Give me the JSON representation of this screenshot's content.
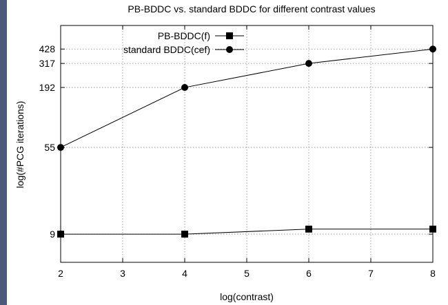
{
  "chart_data": {
    "type": "line",
    "title": "PB-BDDC vs. standard BDDC for different contrast values",
    "xlabel": "log(contrast)",
    "ylabel": "log(#PCG iterations)",
    "x_ticks": [
      2,
      3,
      4,
      5,
      6,
      7,
      8
    ],
    "y_ticks": [
      9,
      55,
      192,
      317,
      428
    ],
    "xlim": [
      2,
      8
    ],
    "ylim": [
      5,
      700
    ],
    "y_scale": "log",
    "grid": true,
    "legend_position": "top-right",
    "series": [
      {
        "name": "PB-BDDC(f)",
        "marker": "square",
        "color": "#000000",
        "x": [
          2,
          4,
          6,
          8
        ],
        "y": [
          9,
          9,
          10,
          10
        ]
      },
      {
        "name": "standard BDDC(cef)",
        "marker": "circle",
        "color": "#000000",
        "x": [
          2,
          4,
          6,
          8
        ],
        "y": [
          55,
          192,
          317,
          428
        ]
      }
    ]
  }
}
